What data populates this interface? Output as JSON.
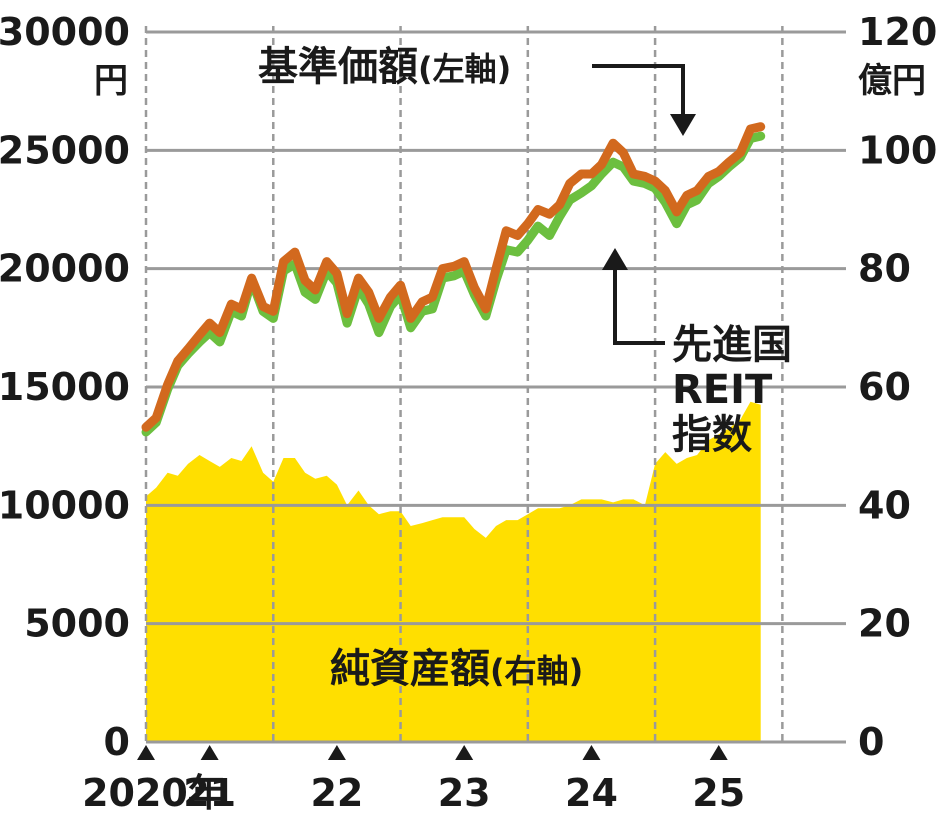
{
  "colors": {
    "background": "#ffffff",
    "area": "#FFDF00",
    "nav_line": "#D2691E",
    "reit_line": "#6CBF3F",
    "grid": "#9a9a9a",
    "text": "#1a1a1a"
  },
  "chart_data": {
    "type": "line",
    "x_range": [
      2020.0,
      2025.5
    ],
    "left_axis": {
      "unit": "円",
      "ticks": [
        "30000",
        "25000",
        "20000",
        "15000",
        "10000",
        "5000",
        "0"
      ],
      "ylim": [
        0,
        30000
      ]
    },
    "right_axis": {
      "unit": "億円",
      "ticks": [
        "120",
        "100",
        "80",
        "60",
        "40",
        "20",
        "0"
      ],
      "ylim": [
        0,
        120
      ]
    },
    "x_ticks": [
      {
        "label": "2020年",
        "x": 2020.0
      },
      {
        "label": "21",
        "x": 2020.5
      },
      {
        "label": "22",
        "x": 2021.5
      },
      {
        "label": "23",
        "x": 2022.5
      },
      {
        "label": "24",
        "x": 2023.5
      },
      {
        "label": "25",
        "x": 2024.5
      }
    ],
    "vertical_grid_x": [
      2020.0,
      2021.0,
      2022.0,
      2023.0,
      2024.0,
      2025.0
    ],
    "series": [
      {
        "name": "基準価額",
        "axis": "left",
        "kind": "line",
        "points": [
          [
            2020.0,
            13300
          ],
          [
            2020.08,
            13700
          ],
          [
            2020.17,
            15100
          ],
          [
            2020.25,
            16100
          ],
          [
            2020.33,
            16600
          ],
          [
            2020.42,
            17200
          ],
          [
            2020.5,
            17700
          ],
          [
            2020.58,
            17300
          ],
          [
            2020.67,
            18500
          ],
          [
            2020.75,
            18300
          ],
          [
            2020.83,
            19600
          ],
          [
            2020.92,
            18400
          ],
          [
            2021.0,
            18200
          ],
          [
            2021.08,
            20300
          ],
          [
            2021.17,
            20700
          ],
          [
            2021.25,
            19500
          ],
          [
            2021.33,
            19100
          ],
          [
            2021.42,
            20300
          ],
          [
            2021.5,
            19800
          ],
          [
            2021.58,
            18100
          ],
          [
            2021.67,
            19600
          ],
          [
            2021.75,
            19000
          ],
          [
            2021.83,
            17900
          ],
          [
            2021.92,
            18800
          ],
          [
            2022.0,
            19300
          ],
          [
            2022.08,
            17900
          ],
          [
            2022.17,
            18600
          ],
          [
            2022.25,
            18800
          ],
          [
            2022.33,
            20000
          ],
          [
            2022.42,
            20100
          ],
          [
            2022.5,
            20300
          ],
          [
            2022.58,
            19200
          ],
          [
            2022.67,
            18300
          ],
          [
            2022.75,
            20000
          ],
          [
            2022.83,
            21600
          ],
          [
            2022.92,
            21400
          ],
          [
            2023.0,
            21900
          ],
          [
            2023.08,
            22500
          ],
          [
            2023.17,
            22300
          ],
          [
            2023.25,
            22700
          ],
          [
            2023.33,
            23600
          ],
          [
            2023.42,
            24000
          ],
          [
            2023.5,
            24000
          ],
          [
            2023.58,
            24400
          ],
          [
            2023.67,
            25300
          ],
          [
            2023.75,
            24900
          ],
          [
            2023.83,
            24000
          ],
          [
            2023.92,
            23900
          ],
          [
            2024.0,
            23700
          ],
          [
            2024.08,
            23300
          ],
          [
            2024.17,
            22400
          ],
          [
            2024.25,
            23100
          ],
          [
            2024.33,
            23300
          ],
          [
            2024.42,
            23900
          ],
          [
            2024.5,
            24100
          ],
          [
            2024.58,
            24500
          ],
          [
            2024.67,
            24900
          ],
          [
            2024.75,
            25900
          ],
          [
            2024.83,
            26000
          ]
        ]
      },
      {
        "name": "先進国REIT指数",
        "axis": "left",
        "kind": "line",
        "points": [
          [
            2020.0,
            13100
          ],
          [
            2020.08,
            13500
          ],
          [
            2020.17,
            14900
          ],
          [
            2020.25,
            15900
          ],
          [
            2020.33,
            16400
          ],
          [
            2020.42,
            16900
          ],
          [
            2020.5,
            17300
          ],
          [
            2020.58,
            16900
          ],
          [
            2020.67,
            18200
          ],
          [
            2020.75,
            18000
          ],
          [
            2020.83,
            19500
          ],
          [
            2020.92,
            18200
          ],
          [
            2021.0,
            17900
          ],
          [
            2021.08,
            19900
          ],
          [
            2021.17,
            20200
          ],
          [
            2021.25,
            19000
          ],
          [
            2021.33,
            18700
          ],
          [
            2021.42,
            19900
          ],
          [
            2021.5,
            19400
          ],
          [
            2021.58,
            17700
          ],
          [
            2021.67,
            19200
          ],
          [
            2021.75,
            18500
          ],
          [
            2021.83,
            17300
          ],
          [
            2021.92,
            18400
          ],
          [
            2022.0,
            18900
          ],
          [
            2022.08,
            17500
          ],
          [
            2022.17,
            18200
          ],
          [
            2022.25,
            18300
          ],
          [
            2022.33,
            19600
          ],
          [
            2022.42,
            19700
          ],
          [
            2022.5,
            19900
          ],
          [
            2022.58,
            18900
          ],
          [
            2022.67,
            18000
          ],
          [
            2022.75,
            19500
          ],
          [
            2022.83,
            20800
          ],
          [
            2022.92,
            20700
          ],
          [
            2023.0,
            21200
          ],
          [
            2023.08,
            21800
          ],
          [
            2023.17,
            21400
          ],
          [
            2023.25,
            22200
          ],
          [
            2023.33,
            22900
          ],
          [
            2023.42,
            23200
          ],
          [
            2023.5,
            23500
          ],
          [
            2023.58,
            24000
          ],
          [
            2023.67,
            24500
          ],
          [
            2023.75,
            24300
          ],
          [
            2023.83,
            23700
          ],
          [
            2023.92,
            23600
          ],
          [
            2024.0,
            23400
          ],
          [
            2024.08,
            22800
          ],
          [
            2024.17,
            21900
          ],
          [
            2024.25,
            22700
          ],
          [
            2024.33,
            22900
          ],
          [
            2024.42,
            23600
          ],
          [
            2024.5,
            23900
          ],
          [
            2024.58,
            24300
          ],
          [
            2024.67,
            24700
          ],
          [
            2024.75,
            25500
          ],
          [
            2024.83,
            25600
          ]
        ]
      },
      {
        "name": "純資産額",
        "axis": "right",
        "kind": "area",
        "points": [
          [
            2020.0,
            41.5
          ],
          [
            2020.08,
            43
          ],
          [
            2020.17,
            45.5
          ],
          [
            2020.25,
            45
          ],
          [
            2020.33,
            47
          ],
          [
            2020.42,
            48.5
          ],
          [
            2020.5,
            47.5
          ],
          [
            2020.58,
            46.5
          ],
          [
            2020.67,
            48
          ],
          [
            2020.75,
            47.5
          ],
          [
            2020.83,
            50
          ],
          [
            2020.92,
            45.5
          ],
          [
            2021.0,
            44
          ],
          [
            2021.08,
            48
          ],
          [
            2021.17,
            48
          ],
          [
            2021.25,
            45.5
          ],
          [
            2021.33,
            44.5
          ],
          [
            2021.42,
            45
          ],
          [
            2021.5,
            43.5
          ],
          [
            2021.58,
            40
          ],
          [
            2021.67,
            42.5
          ],
          [
            2021.75,
            40
          ],
          [
            2021.83,
            38.5
          ],
          [
            2021.92,
            39
          ],
          [
            2022.0,
            39
          ],
          [
            2022.08,
            36.5
          ],
          [
            2022.17,
            37
          ],
          [
            2022.25,
            37.5
          ],
          [
            2022.33,
            38
          ],
          [
            2022.42,
            38
          ],
          [
            2022.5,
            38
          ],
          [
            2022.58,
            36
          ],
          [
            2022.67,
            34.5
          ],
          [
            2022.75,
            36.5
          ],
          [
            2022.83,
            37.5
          ],
          [
            2022.92,
            37.5
          ],
          [
            2023.0,
            38.5
          ],
          [
            2023.08,
            39.5
          ],
          [
            2023.17,
            39.5
          ],
          [
            2023.25,
            39.5
          ],
          [
            2023.33,
            40
          ],
          [
            2023.42,
            41
          ],
          [
            2023.5,
            41
          ],
          [
            2023.58,
            41
          ],
          [
            2023.67,
            40.5
          ],
          [
            2023.75,
            41
          ],
          [
            2023.83,
            41
          ],
          [
            2023.92,
            40
          ],
          [
            2024.0,
            47
          ],
          [
            2024.08,
            49
          ],
          [
            2024.17,
            47
          ],
          [
            2024.25,
            48
          ],
          [
            2024.33,
            48.5
          ],
          [
            2024.42,
            51
          ],
          [
            2024.5,
            52
          ],
          [
            2024.58,
            53
          ],
          [
            2024.67,
            54.5
          ],
          [
            2024.75,
            57.5
          ],
          [
            2024.83,
            57
          ]
        ]
      }
    ],
    "annotations": [
      {
        "text": "基準価額",
        "suffix": "(左軸)",
        "target_series": "基準価額",
        "target_x": 2023.67
      },
      {
        "text": "先進国",
        "text2": "REIT",
        "text3": "指数",
        "target_series": "先進国REIT指数",
        "target_x": 2023.25
      },
      {
        "text": "純資産額",
        "suffix": "(右軸)",
        "target_series": "純資産額"
      }
    ]
  }
}
